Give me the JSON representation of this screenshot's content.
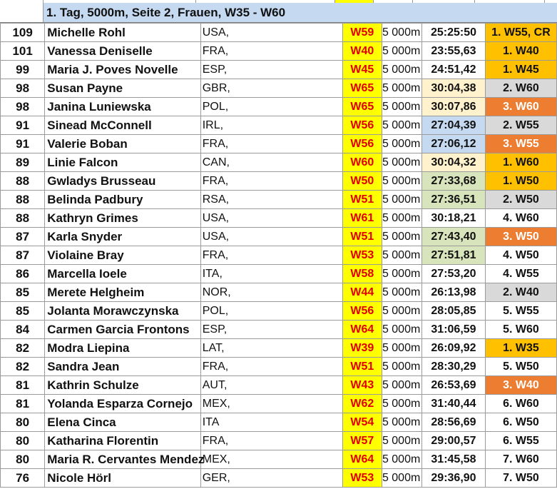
{
  "header": {
    "title": "1. Tag, 5000m, Seite 2, Frauen, W35 - W60"
  },
  "rows": [
    {
      "points": "109",
      "name": "Michelle Rohl",
      "country": "USA,",
      "age_class": "W59",
      "distance": "5 000m",
      "time": "25:25:50",
      "time_style": "",
      "place": "1. W55, CR",
      "place_style": "p-orange"
    },
    {
      "points": "101",
      "name": "Vanessa Deniselle",
      "country": "FRA,",
      "age_class": "W40",
      "distance": "5 000m",
      "time": "23:55,63",
      "time_style": "",
      "place": "1. W40",
      "place_style": "p-orange"
    },
    {
      "points": "99",
      "name": "Maria J. Poves Novelle",
      "country": "ESP,",
      "age_class": "W45",
      "distance": "5 000m",
      "time": "24:51,42",
      "time_style": "",
      "place": "1. W45",
      "place_style": "p-orange"
    },
    {
      "points": "98",
      "name": "Susan Payne",
      "country": "GBR,",
      "age_class": "W65",
      "distance": "5 000m",
      "time": "30:04,38",
      "time_style": "t-light-yellow",
      "place": "2. W60",
      "place_style": "p-gray"
    },
    {
      "points": "98",
      "name": "Janina Luniewska",
      "country": "POL,",
      "age_class": "W65",
      "distance": "5 000m",
      "time": "30:07,86",
      "time_style": "t-light-yellow",
      "place": "3. W60",
      "place_style": "p-dark-orange"
    },
    {
      "points": "91",
      "name": "Sinead McConnell",
      "country": "IRL,",
      "age_class": "W56",
      "distance": "5 000m",
      "time": "27:04,39",
      "time_style": "t-blue",
      "place": "2. W55",
      "place_style": "p-gray"
    },
    {
      "points": "91",
      "name": "Valerie Boban",
      "country": "FRA,",
      "age_class": "W56",
      "distance": "5 000m",
      "time": "27:06,12",
      "time_style": "t-blue",
      "place": "3. W55",
      "place_style": "p-dark-orange"
    },
    {
      "points": "89",
      "name": "Linie Falcon",
      "country": "CAN,",
      "age_class": "W60",
      "distance": "5 000m",
      "time": "30:04,32",
      "time_style": "t-light-yellow",
      "place": "1. W60",
      "place_style": "p-orange"
    },
    {
      "points": "88",
      "name": "Gwladys Brusseau",
      "country": "FRA,",
      "age_class": "W50",
      "distance": "5 000m",
      "time": "27:33,68",
      "time_style": "t-green",
      "place": "1. W50",
      "place_style": "p-orange"
    },
    {
      "points": "88",
      "name": "Belinda Padbury",
      "country": "RSA,",
      "age_class": "W51",
      "distance": "5 000m",
      "time": "27:36,51",
      "time_style": "t-green",
      "place": "2. W50",
      "place_style": "p-gray"
    },
    {
      "points": "88",
      "name": "Kathryn Grimes",
      "country": "USA,",
      "age_class": "W61",
      "distance": "5 000m",
      "time": "30:18,21",
      "time_style": "",
      "place": "4. W60",
      "place_style": ""
    },
    {
      "points": "87",
      "name": "Karla Snyder",
      "country": "USA,",
      "age_class": "W51",
      "distance": "5 000m",
      "time": "27:43,40",
      "time_style": "t-green",
      "place": "3. W50",
      "place_style": "p-dark-orange"
    },
    {
      "points": "87",
      "name": "Violaine Bray",
      "country": "FRA,",
      "age_class": "W53",
      "distance": "5 000m",
      "time": "27:51,81",
      "time_style": "t-green",
      "place": "4. W50",
      "place_style": ""
    },
    {
      "points": "86",
      "name": "Marcella Ioele",
      "country": "ITA,",
      "age_class": "W58",
      "distance": "5 000m",
      "time": "27:53,20",
      "time_style": "",
      "place": "4. W55",
      "place_style": ""
    },
    {
      "points": "85",
      "name": "Merete Helgheim",
      "country": "NOR,",
      "age_class": "W44",
      "distance": "5 000m",
      "time": "26:13,98",
      "time_style": "",
      "place": "2. W40",
      "place_style": "p-gray"
    },
    {
      "points": "85",
      "name": "Jolanta Morawczynska",
      "country": "POL,",
      "age_class": "W56",
      "distance": "5 000m",
      "time": "28:05,85",
      "time_style": "",
      "place": "5. W55",
      "place_style": ""
    },
    {
      "points": "84",
      "name": "Carmen Garcia Frontons",
      "country": "ESP,",
      "age_class": "W64",
      "distance": "5 000m",
      "time": "31:06,59",
      "time_style": "",
      "place": "5. W60",
      "place_style": ""
    },
    {
      "points": "82",
      "name": "Modra Liepina",
      "country": "LAT,",
      "age_class": "W39",
      "distance": "5 000m",
      "time": "26:09,92",
      "time_style": "",
      "place": "1. W35",
      "place_style": "p-orange"
    },
    {
      "points": "82",
      "name": "Sandra Jean",
      "country": "FRA,",
      "age_class": "W51",
      "distance": "5 000m",
      "time": "28:30,29",
      "time_style": "",
      "place": "5. W50",
      "place_style": ""
    },
    {
      "points": "81",
      "name": "Kathrin Schulze",
      "country": "AUT,",
      "age_class": "W43",
      "distance": "5 000m",
      "time": "26:53,69",
      "time_style": "",
      "place": "3. W40",
      "place_style": "p-dark-orange"
    },
    {
      "points": "81",
      "name": "Yolanda Esparza Cornejo",
      "country": "MEX,",
      "age_class": "W62",
      "distance": "5 000m",
      "time": "31:40,44",
      "time_style": "",
      "place": "6. W60",
      "place_style": ""
    },
    {
      "points": "80",
      "name": "Elena Cinca",
      "country": "ITA",
      "age_class": "W54",
      "distance": "5 000m",
      "time": "28:56,69",
      "time_style": "",
      "place": "6. W50",
      "place_style": ""
    },
    {
      "points": "80",
      "name": "Katharina Florentin",
      "country": "FRA,",
      "age_class": "W57",
      "distance": "5 000m",
      "time": "29:00,57",
      "time_style": "",
      "place": "6. W55",
      "place_style": ""
    },
    {
      "points": "80",
      "name": "Maria R. Cervantes Mendez",
      "country": "MEX,",
      "age_class": "W64",
      "distance": "5 000m",
      "time": "31:45,58",
      "time_style": "",
      "place": "7. W60",
      "place_style": ""
    },
    {
      "points": "76",
      "name": "Nicole Hörl",
      "country": "GER,",
      "age_class": "W53",
      "distance": "5 000m",
      "time": "29:36,90",
      "time_style": "",
      "place": "7. W50",
      "place_style": ""
    }
  ]
}
